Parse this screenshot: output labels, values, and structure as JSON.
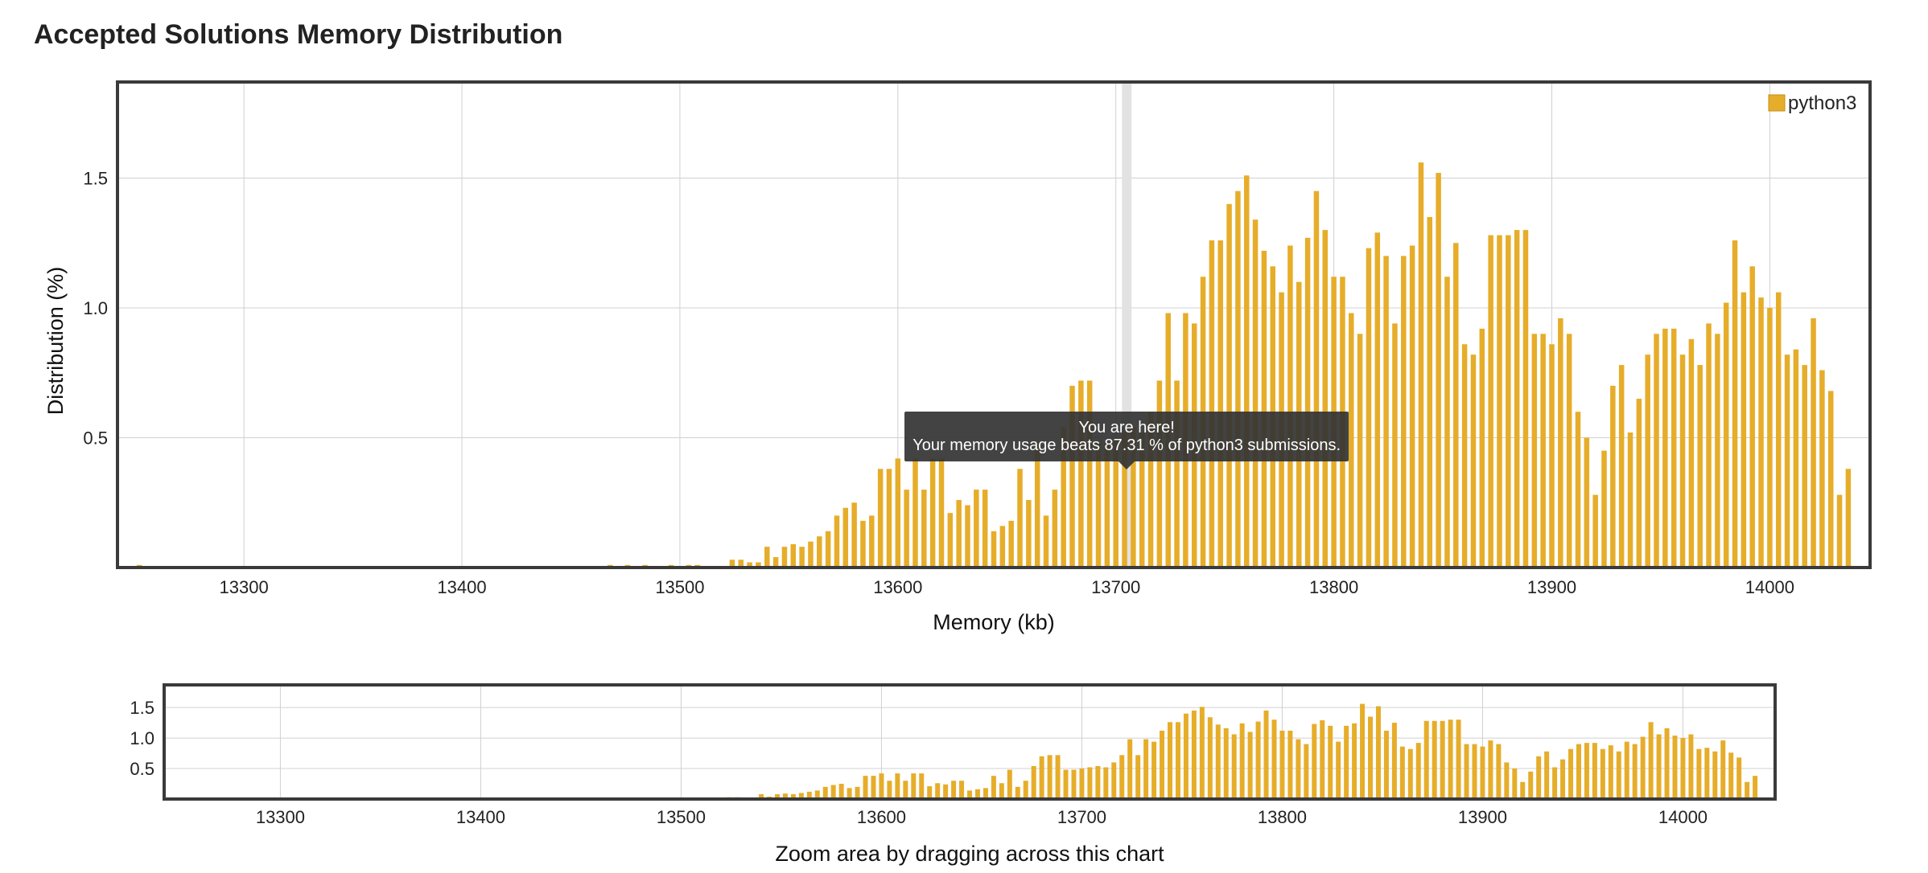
{
  "page": {
    "title": "Accepted Solutions Memory Distribution"
  },
  "colors": {
    "bar": "#e6ad2a",
    "grid": "#d0d0d0",
    "frame": "#3a3a3a",
    "highlight": "#e2e2e2"
  },
  "tooltip": {
    "line1": "You are here!",
    "line2": "Your memory usage beats 87.31 % of python3 submissions.",
    "x": 13705
  },
  "chart_data": [
    {
      "name": "main",
      "type": "bar",
      "title": "Accepted Solutions Memory Distribution",
      "xlabel": "Memory (kb)",
      "ylabel": "Distribution (%)",
      "xlim": [
        13242,
        14046
      ],
      "ylim": [
        0,
        1.87
      ],
      "xticks": [
        13300,
        13400,
        13500,
        13600,
        13700,
        13800,
        13900,
        14000
      ],
      "yticks": [
        0.5,
        1.0,
        1.5
      ],
      "ytick_labels": [
        "0.5",
        "1.0",
        "1.5"
      ],
      "legend": {
        "label": "python3",
        "position": "top-right"
      },
      "highlight_x": 13705,
      "series": [
        {
          "name": "python3",
          "x": [
            13252,
            13468,
            13476,
            13484,
            13496,
            13504,
            13508,
            13524,
            13528,
            13532,
            13536,
            13540,
            13544,
            13548,
            13552,
            13556,
            13560,
            13564,
            13568,
            13572,
            13576,
            13580,
            13584,
            13588,
            13592,
            13596,
            13600,
            13604,
            13608,
            13612,
            13616,
            13620,
            13624,
            13628,
            13632,
            13636,
            13640,
            13644,
            13648,
            13652,
            13656,
            13660,
            13664,
            13668,
            13672,
            13676,
            13680,
            13684,
            13688,
            13692,
            13696,
            13700,
            13704,
            13708,
            13712,
            13716,
            13720,
            13724,
            13728,
            13732,
            13736,
            13740,
            13744,
            13748,
            13752,
            13756,
            13760,
            13764,
            13768,
            13772,
            13776,
            13780,
            13784,
            13788,
            13792,
            13796,
            13800,
            13804,
            13808,
            13812,
            13816,
            13820,
            13824,
            13828,
            13832,
            13836,
            13840,
            13844,
            13848,
            13852,
            13856,
            13860,
            13864,
            13868,
            13872,
            13876,
            13880,
            13884,
            13888,
            13892,
            13896,
            13900,
            13904,
            13908,
            13912,
            13916,
            13920,
            13924,
            13928,
            13932,
            13936,
            13940,
            13944,
            13948,
            13952,
            13956,
            13960,
            13964,
            13968,
            13972,
            13976,
            13980,
            13984,
            13988,
            13992,
            13996,
            14000,
            14004,
            14008,
            14012,
            14016,
            14020,
            14024,
            14028,
            14032,
            14036
          ],
          "values": [
            0.01,
            0.01,
            0.01,
            0.01,
            0.01,
            0.01,
            0.01,
            0.03,
            0.03,
            0.02,
            0.02,
            0.08,
            0.04,
            0.08,
            0.09,
            0.08,
            0.1,
            0.12,
            0.14,
            0.2,
            0.23,
            0.25,
            0.18,
            0.2,
            0.38,
            0.38,
            0.42,
            0.3,
            0.42,
            0.3,
            0.42,
            0.42,
            0.21,
            0.26,
            0.24,
            0.3,
            0.3,
            0.14,
            0.16,
            0.18,
            0.38,
            0.26,
            0.48,
            0.2,
            0.3,
            0.54,
            0.7,
            0.72,
            0.72,
            0.48,
            0.48,
            0.5,
            0.52,
            0.54,
            0.52,
            0.6,
            0.72,
            0.98,
            0.72,
            0.98,
            0.94,
            1.12,
            1.26,
            1.26,
            1.4,
            1.45,
            1.51,
            1.34,
            1.22,
            1.16,
            1.06,
            1.24,
            1.1,
            1.27,
            1.45,
            1.3,
            1.12,
            1.12,
            0.98,
            0.9,
            1.23,
            1.29,
            1.2,
            0.94,
            1.2,
            1.24,
            1.56,
            1.35,
            1.52,
            1.12,
            1.25,
            0.86,
            0.82,
            0.92,
            1.28,
            1.28,
            1.28,
            1.3,
            1.3,
            0.9,
            0.9,
            0.86,
            0.96,
            0.9,
            0.6,
            0.5,
            0.28,
            0.45,
            0.7,
            0.78,
            0.52,
            0.65,
            0.82,
            0.9,
            0.92,
            0.92,
            0.82,
            0.88,
            0.78,
            0.94,
            0.9,
            1.02,
            1.26,
            1.06,
            1.16,
            1.04,
            1.0,
            1.06,
            0.82,
            0.84,
            0.78,
            0.96,
            0.76,
            0.68,
            0.28,
            0.38
          ]
        }
      ]
    },
    {
      "name": "navigator",
      "type": "bar",
      "xlabel": "Zoom area by dragging across this chart",
      "xlim": [
        13242,
        14046
      ],
      "ylim": [
        0,
        1.87
      ],
      "xticks": [
        13300,
        13400,
        13500,
        13600,
        13700,
        13800,
        13900,
        14000
      ],
      "yticks": [
        0.5,
        1.0,
        1.5
      ],
      "ytick_labels": [
        "0.5",
        "1.0",
        "1.5"
      ],
      "series_ref": "python3"
    }
  ]
}
